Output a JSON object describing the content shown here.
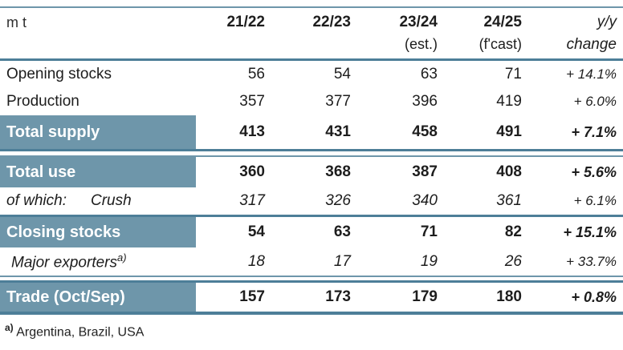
{
  "table": {
    "unit_label": "m t",
    "header": {
      "col1_year": "21/22",
      "col2_year": "22/23",
      "col3_year": "23/24",
      "col3_sub": "(est.)",
      "col4_year": "24/25",
      "col4_sub": "(f'cast)",
      "yoy_line1": "y/y",
      "yoy_line2": "change"
    },
    "rows": [
      {
        "label": "Opening stocks",
        "values": [
          "56",
          "54",
          "63",
          "71"
        ],
        "yoy": "+ 14.1%"
      },
      {
        "label": "Production",
        "values": [
          "357",
          "377",
          "396",
          "419"
        ],
        "yoy": "+ 6.0%"
      },
      {
        "label": "Total supply",
        "values": [
          "413",
          "431",
          "458",
          "491"
        ],
        "yoy": "+ 7.1%"
      },
      {
        "label": "Total use",
        "values": [
          "360",
          "368",
          "387",
          "408"
        ],
        "yoy": "+ 5.6%"
      },
      {
        "label": "of which:",
        "label2": "Crush",
        "values": [
          "317",
          "326",
          "340",
          "361"
        ],
        "yoy": "+ 6.1%"
      },
      {
        "label": "Closing stocks",
        "values": [
          "54",
          "63",
          "71",
          "82"
        ],
        "yoy": "+ 15.1%"
      },
      {
        "label": "Major exporters",
        "sup": "a)",
        "values": [
          "18",
          "17",
          "19",
          "26"
        ],
        "yoy": "+ 33.7%"
      },
      {
        "label": "Trade (Oct/Sep)",
        "values": [
          "157",
          "173",
          "179",
          "180"
        ],
        "yoy": "+ 0.8%"
      }
    ],
    "footnote": {
      "marker": "a)",
      "text": "Argentina, Brazil, USA"
    },
    "colors": {
      "highlight_row": "#6e96aa",
      "forecast_column_shade": "#d4dae3",
      "rule": "#4d7e98"
    }
  },
  "chart_data": {
    "type": "table",
    "unit": "m t",
    "columns": [
      "21/22",
      "22/23",
      "23/24 (est.)",
      "24/25 (f'cast)",
      "y/y change"
    ],
    "rows": [
      {
        "label": "Opening stocks",
        "values": [
          56,
          54,
          63,
          71
        ],
        "yoy_change": "+ 14.1%"
      },
      {
        "label": "Production",
        "values": [
          357,
          377,
          396,
          419
        ],
        "yoy_change": "+ 6.0%"
      },
      {
        "label": "Total supply",
        "values": [
          413,
          431,
          458,
          491
        ],
        "yoy_change": "+ 7.1%",
        "emphasis": true
      },
      {
        "label": "Total use",
        "values": [
          360,
          368,
          387,
          408
        ],
        "yoy_change": "+ 5.6%",
        "emphasis": true
      },
      {
        "label": "of which: Crush",
        "values": [
          317,
          326,
          340,
          361
        ],
        "yoy_change": "+ 6.1%"
      },
      {
        "label": "Closing stocks",
        "values": [
          54,
          63,
          71,
          82
        ],
        "yoy_change": "+ 15.1%",
        "emphasis": true
      },
      {
        "label": "Major exporters a)",
        "values": [
          18,
          17,
          19,
          26
        ],
        "yoy_change": "+ 33.7%"
      },
      {
        "label": "Trade (Oct/Sep)",
        "values": [
          157,
          173,
          179,
          180
        ],
        "yoy_change": "+ 0.8%",
        "emphasis": true
      }
    ],
    "footnote": "a) Argentina, Brazil, USA",
    "layout_hints": {
      "forecast_column_shaded": "24/25",
      "highlighted_label_rows": [
        "Total supply",
        "Total use",
        "Closing stocks",
        "Trade (Oct/Sep)"
      ]
    }
  }
}
